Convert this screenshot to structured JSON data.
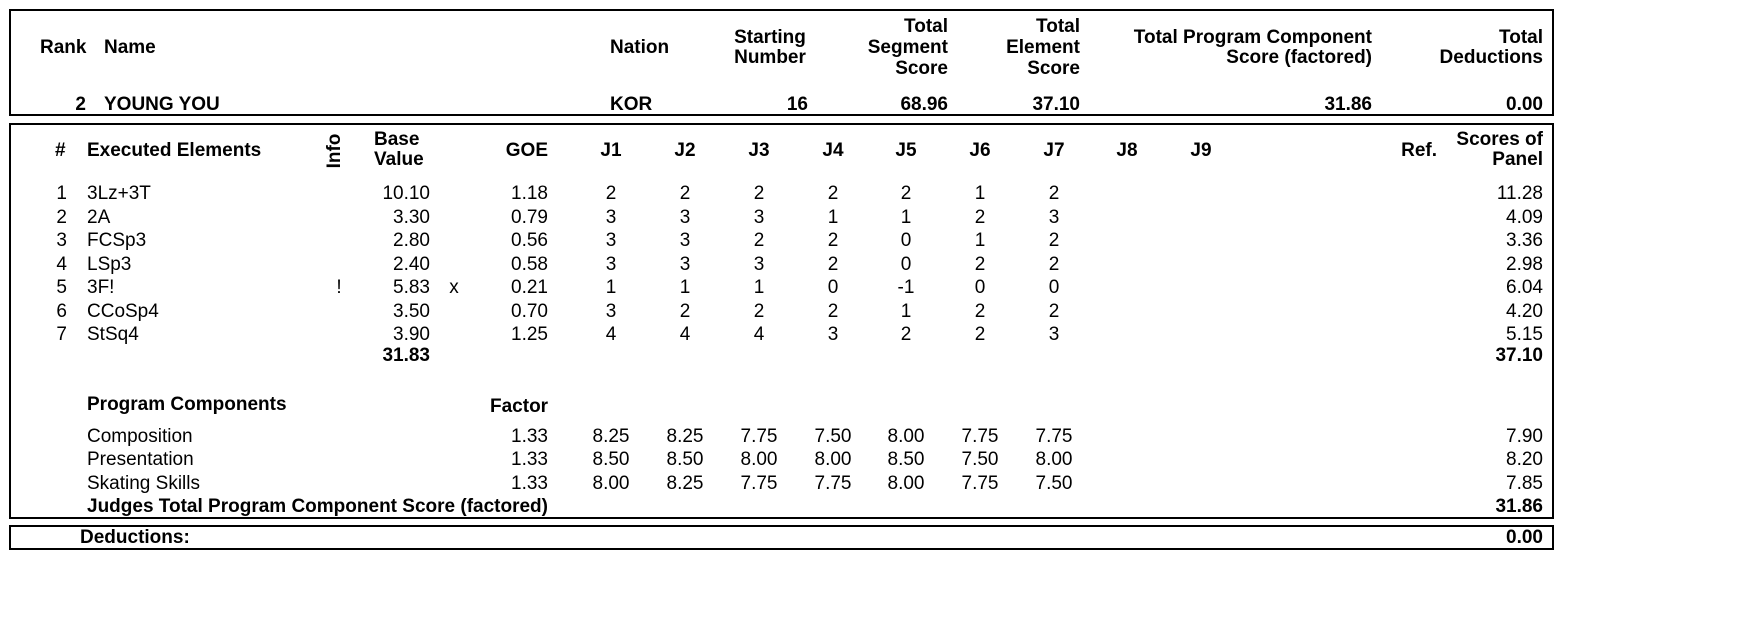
{
  "header": {
    "labels": {
      "rank": "Rank",
      "name": "Name",
      "nation": "Nation",
      "starting_number": [
        "Starting",
        "Number"
      ],
      "total_segment_score": [
        "Total",
        "Segment",
        "Score"
      ],
      "total_element_score": [
        "Total",
        "Element",
        "Score"
      ],
      "total_pcs": [
        "Total Program Component",
        "Score (factored)"
      ],
      "total_deductions": [
        "Total",
        "Deductions"
      ]
    },
    "values": {
      "rank": "2",
      "name": "YOUNG YOU",
      "nation": "KOR",
      "starting_number": "16",
      "total_segment_score": "68.96",
      "total_element_score": "37.10",
      "total_pcs": "31.86",
      "total_deductions": "0.00"
    }
  },
  "elements": {
    "labels": {
      "num": "#",
      "executed": "Executed Elements",
      "info": "Info",
      "base_value": [
        "Base",
        "Value"
      ],
      "goe": "GOE",
      "judges": [
        "J1",
        "J2",
        "J3",
        "J4",
        "J5",
        "J6",
        "J7",
        "J8",
        "J9"
      ],
      "ref": "Ref.",
      "scores_of_panel": [
        "Scores of",
        "Panel"
      ]
    },
    "rows": [
      {
        "num": "1",
        "name": "3Lz+3T",
        "info": "",
        "base": "10.10",
        "mark": "",
        "goe": "1.18",
        "judges": [
          "2",
          "2",
          "2",
          "2",
          "2",
          "1",
          "2"
        ],
        "score": "11.28"
      },
      {
        "num": "2",
        "name": "2A",
        "info": "",
        "base": "3.30",
        "mark": "",
        "goe": "0.79",
        "judges": [
          "3",
          "3",
          "3",
          "1",
          "1",
          "2",
          "3"
        ],
        "score": "4.09"
      },
      {
        "num": "3",
        "name": "FCSp3",
        "info": "",
        "base": "2.80",
        "mark": "",
        "goe": "0.56",
        "judges": [
          "3",
          "3",
          "2",
          "2",
          "0",
          "1",
          "2"
        ],
        "score": "3.36"
      },
      {
        "num": "4",
        "name": "LSp3",
        "info": "",
        "base": "2.40",
        "mark": "",
        "goe": "0.58",
        "judges": [
          "3",
          "3",
          "3",
          "2",
          "0",
          "2",
          "2"
        ],
        "score": "2.98"
      },
      {
        "num": "5",
        "name": "3F!",
        "info": "!",
        "base": "5.83",
        "mark": "x",
        "goe": "0.21",
        "judges": [
          "1",
          "1",
          "1",
          "0",
          "-1",
          "0",
          "0"
        ],
        "score": "6.04"
      },
      {
        "num": "6",
        "name": "CCoSp4",
        "info": "",
        "base": "3.50",
        "mark": "",
        "goe": "0.70",
        "judges": [
          "3",
          "2",
          "2",
          "2",
          "1",
          "2",
          "2"
        ],
        "score": "4.20"
      },
      {
        "num": "7",
        "name": "StSq4",
        "info": "",
        "base": "3.90",
        "mark": "",
        "goe": "1.25",
        "judges": [
          "4",
          "4",
          "4",
          "3",
          "2",
          "2",
          "3"
        ],
        "score": "5.15"
      }
    ],
    "base_total": "31.83",
    "score_total": "37.10"
  },
  "components": {
    "title": "Program Components",
    "factor_label": "Factor",
    "rows": [
      {
        "name": "Composition",
        "factor": "1.33",
        "judges": [
          "8.25",
          "8.25",
          "7.75",
          "7.50",
          "8.00",
          "7.75",
          "7.75"
        ],
        "score": "7.90"
      },
      {
        "name": "Presentation",
        "factor": "1.33",
        "judges": [
          "8.50",
          "8.50",
          "8.00",
          "8.00",
          "8.50",
          "7.50",
          "8.00"
        ],
        "score": "8.20"
      },
      {
        "name": "Skating Skills",
        "factor": "1.33",
        "judges": [
          "8.00",
          "8.25",
          "7.75",
          "7.75",
          "8.00",
          "7.75",
          "7.50"
        ],
        "score": "7.85"
      }
    ],
    "total_label": "Judges Total Program Component Score (factored)",
    "total_value": "31.86"
  },
  "deductions": {
    "label": "Deductions:",
    "value": "0.00"
  }
}
